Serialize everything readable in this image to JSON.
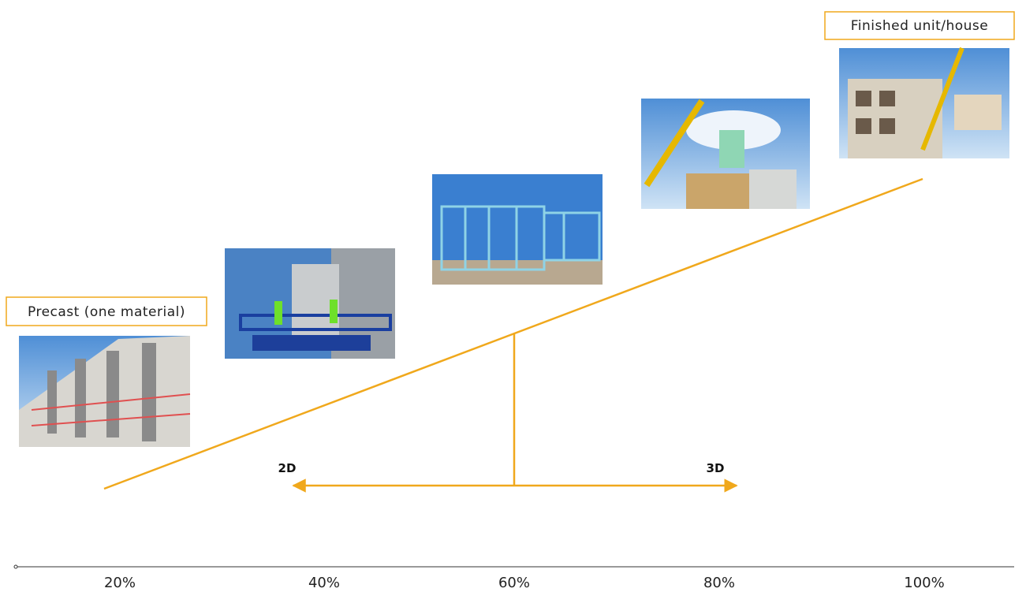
{
  "labels": {
    "start": "Precast (one material)",
    "end": "Finished unit/house"
  },
  "arrow": {
    "left": "2D",
    "right": "3D"
  },
  "axis": {
    "ticks": [
      "20%",
      "40%",
      "60%",
      "80%",
      "100%"
    ]
  }
}
